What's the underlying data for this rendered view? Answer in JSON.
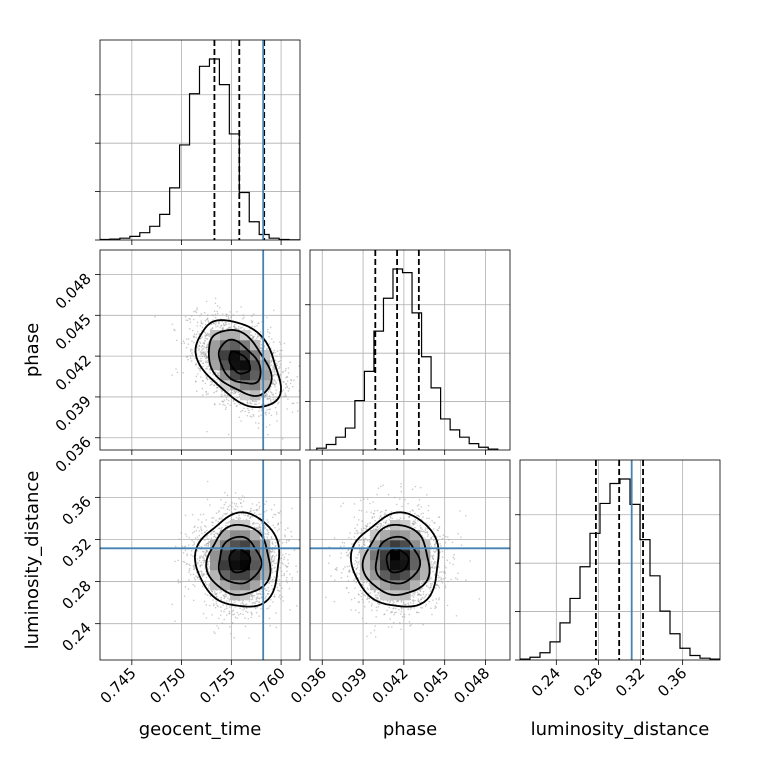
{
  "chart_data": {
    "type": "corner",
    "parameters": [
      "geocent_time",
      "phase",
      "luminosity_distance"
    ],
    "axis_labels": {
      "x": [
        "geocent_time",
        "phase",
        "luminosity_distance"
      ],
      "y": [
        "",
        "phase",
        "luminosity_distance"
      ]
    },
    "ranges": {
      "geocent_time": [
        0.7418,
        0.7619
      ],
      "phase": [
        0.0351,
        0.0498
      ],
      "luminosity_distance": [
        0.2055,
        0.3955
      ]
    },
    "ticks": {
      "geocent_time": [
        0.745,
        0.75,
        0.755,
        0.76
      ],
      "phase": [
        0.036,
        0.039,
        0.042,
        0.045,
        0.048
      ],
      "luminosity_distance": [
        0.24,
        0.28,
        0.32,
        0.36
      ]
    },
    "tick_labels": {
      "geocent_time": [
        "0.745",
        "0.750",
        "0.755",
        "0.760"
      ],
      "phase": [
        "0.036",
        "0.039",
        "0.042",
        "0.045",
        "0.048"
      ],
      "luminosity_distance": [
        "0.24",
        "0.28",
        "0.32",
        "0.36"
      ]
    },
    "truths": {
      "geocent_time": 0.7582,
      "luminosity_distance": 0.3116
    },
    "quantiles": {
      "geocent_time": [
        0.7533,
        0.7558,
        0.7583
      ],
      "phase": [
        0.0399,
        0.0415,
        0.0431
      ],
      "luminosity_distance": [
        0.2776,
        0.2997,
        0.3224
      ]
    },
    "histograms": {
      "geocent_time": {
        "edges": [
          0.7418,
          0.7428,
          0.7438,
          0.7448,
          0.7458,
          0.7468,
          0.7478,
          0.7488,
          0.7498,
          0.7508,
          0.7518,
          0.7528,
          0.7538,
          0.7548,
          0.7558,
          0.7568,
          0.7578,
          0.7588,
          0.7598,
          0.7608,
          0.7618
        ],
        "counts": [
          0.003,
          0.005,
          0.01,
          0.02,
          0.04,
          0.075,
          0.14,
          0.285,
          0.52,
          0.8,
          0.95,
          0.99,
          0.85,
          0.58,
          0.26,
          0.1,
          0.03,
          0.01,
          0.003,
          0.001
        ]
      },
      "phase": {
        "edges": [
          0.0356,
          0.0363,
          0.037,
          0.0377,
          0.0384,
          0.0391,
          0.0398,
          0.0405,
          0.0412,
          0.0419,
          0.0426,
          0.0433,
          0.044,
          0.0447,
          0.0454,
          0.0461,
          0.0468,
          0.0475,
          0.0482,
          0.0489
        ],
        "counts": [
          0.01,
          0.03,
          0.07,
          0.12,
          0.27,
          0.43,
          0.65,
          0.83,
          0.99,
          0.97,
          0.75,
          0.51,
          0.34,
          0.17,
          0.11,
          0.07,
          0.035,
          0.015,
          0.005
        ]
      },
      "luminosity_distance": {
        "edges": [
          0.2055,
          0.215,
          0.2245,
          0.234,
          0.2435,
          0.253,
          0.2625,
          0.272,
          0.2815,
          0.291,
          0.3005,
          0.31,
          0.3195,
          0.329,
          0.3385,
          0.348,
          0.3575,
          0.367,
          0.3765,
          0.386,
          0.3955
        ],
        "counts": [
          0.005,
          0.015,
          0.04,
          0.1,
          0.205,
          0.34,
          0.515,
          0.7,
          0.865,
          0.975,
          1.0,
          0.86,
          0.665,
          0.465,
          0.27,
          0.145,
          0.065,
          0.025,
          0.01,
          0.005
        ]
      }
    },
    "panels_2d": [
      {
        "x": "geocent_time",
        "y": "phase",
        "center": [
          0.7558,
          0.0415
        ],
        "spread": [
          0.0021,
          0.0016
        ],
        "correlation": -0.42,
        "contour_radii": [
          0.5,
          1.0,
          1.5,
          2.0
        ]
      },
      {
        "x": "geocent_time",
        "y": "luminosity_distance",
        "center": [
          0.7558,
          0.2997
        ],
        "spread": [
          0.0021,
          0.0222
        ],
        "correlation": 0.0,
        "contour_radii": [
          0.5,
          1.0,
          1.5,
          2.0
        ]
      },
      {
        "x": "phase",
        "y": "luminosity_distance",
        "center": [
          0.0415,
          0.2997
        ],
        "spread": [
          0.0016,
          0.0222
        ],
        "correlation": 0.0,
        "contour_radii": [
          0.5,
          1.0,
          1.5,
          2.0
        ]
      }
    ],
    "colors": {
      "truth": "#4682b4",
      "line": "#000000",
      "grid": "#b0b0b0",
      "points": "#a0a0a0"
    },
    "grid": true
  }
}
